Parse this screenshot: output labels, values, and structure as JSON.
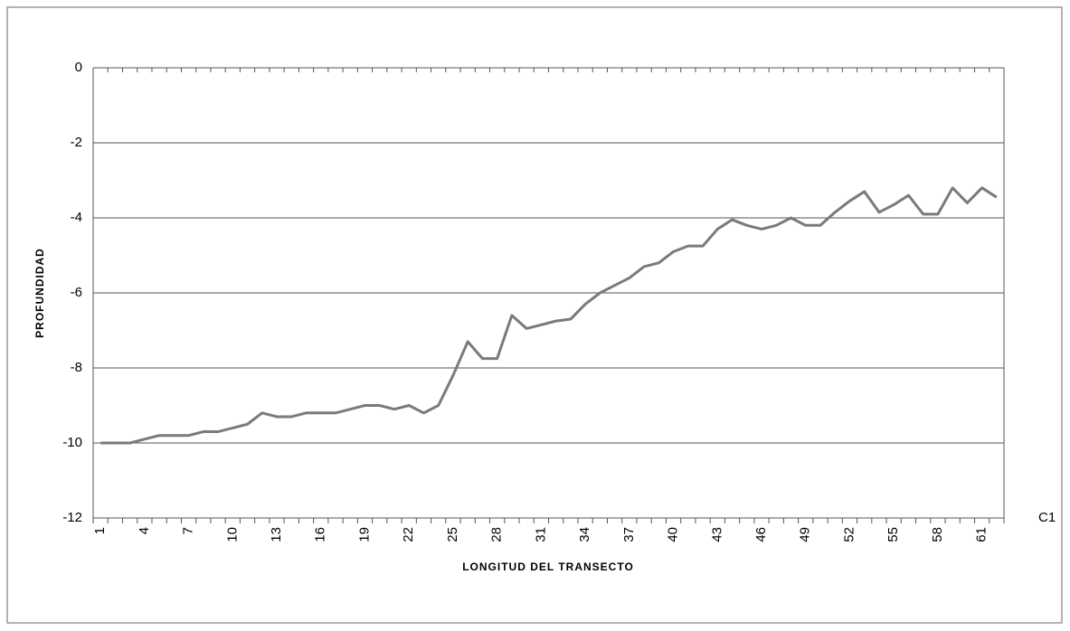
{
  "chart_data": {
    "type": "line",
    "x_label": "LONGITUD DEL TRANSECTO",
    "y_label": "PROFUNDIDAD",
    "categories": [
      "1",
      null,
      null,
      "4",
      null,
      null,
      "7",
      null,
      null,
      "10",
      null,
      null,
      "13",
      null,
      null,
      "16",
      null,
      null,
      "19",
      null,
      null,
      "22",
      null,
      null,
      "25",
      null,
      null,
      "28",
      null,
      null,
      "31",
      null,
      null,
      "34",
      null,
      null,
      "37",
      null,
      null,
      "40",
      null,
      null,
      "43",
      null,
      null,
      "46",
      null,
      null,
      "49",
      null,
      null,
      "52",
      null,
      null,
      "55",
      null,
      null,
      "58",
      null,
      null,
      "61",
      null
    ],
    "series": [
      {
        "name": "C1",
        "color": "#7a7a7a",
        "values": [
          -10,
          -10,
          -10,
          -9.9,
          -9.8,
          -9.8,
          -9.8,
          -9.7,
          -9.7,
          -9.6,
          -9.5,
          -9.2,
          -9.3,
          -9.3,
          -9.2,
          -9.2,
          -9.2,
          -9.1,
          -9.0,
          -9.0,
          -9.1,
          -9.0,
          -9.2,
          -9.0,
          -8.2,
          -7.3,
          -7.75,
          -7.75,
          -6.6,
          -6.95,
          -6.85,
          -6.75,
          -6.7,
          -6.3,
          -6.0,
          -5.8,
          -5.6,
          -5.3,
          -5.2,
          -4.9,
          -4.75,
          -4.75,
          -4.3,
          -4.05,
          -4.2,
          -4.3,
          -4.2,
          -4.0,
          -4.2,
          -4.2,
          -3.85,
          -3.55,
          -3.3,
          -3.85,
          -3.65,
          -3.4,
          -3.9,
          -3.9,
          -3.2,
          -3.6,
          -3.2,
          -3.45
        ]
      }
    ],
    "ylim": [
      -12,
      0
    ],
    "yticks": [
      -12,
      -10,
      -8,
      -6,
      -4,
      -2,
      0
    ],
    "grid": true,
    "legend": "right"
  }
}
